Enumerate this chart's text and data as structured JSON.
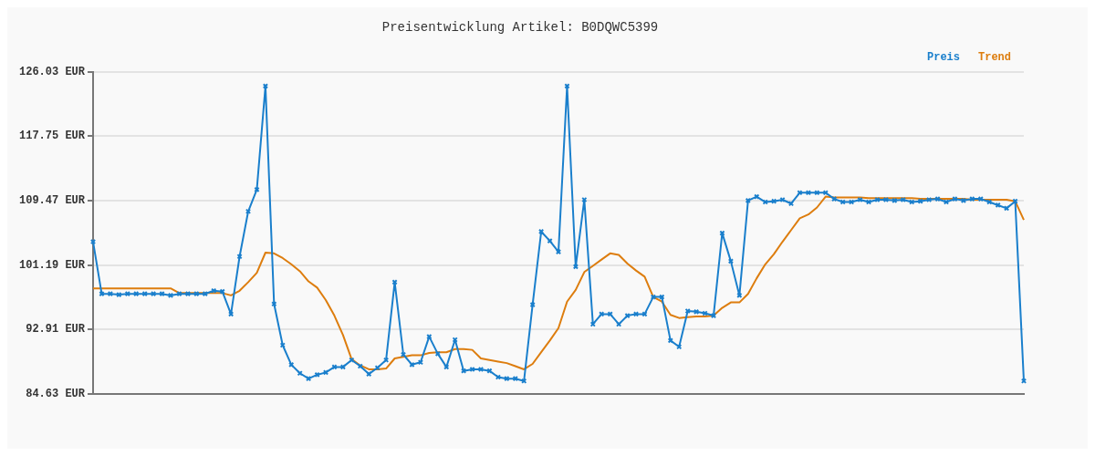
{
  "chart_data": {
    "type": "line",
    "title": "Preisentwicklung Artikel: B0DQWC5399",
    "categories": [
      null,
      null,
      null,
      null,
      null,
      null,
      null,
      null,
      null,
      null,
      null,
      null,
      null,
      null,
      null,
      null,
      null,
      null,
      null,
      null,
      null,
      null,
      null,
      null,
      null,
      null,
      null,
      null,
      null,
      null,
      null,
      null,
      null,
      null,
      null,
      null,
      null,
      null,
      null,
      null,
      null,
      null,
      null,
      null,
      null,
      null,
      null,
      null,
      null,
      null,
      null,
      null,
      null,
      null,
      null,
      null,
      null,
      null,
      null,
      null,
      null,
      null,
      null,
      null,
      null,
      null,
      null,
      null,
      null,
      null,
      null,
      null,
      null,
      null,
      null,
      null,
      null,
      null,
      null,
      null,
      null,
      null,
      null,
      null,
      null,
      null,
      null,
      null,
      null,
      null,
      null,
      null,
      null,
      null,
      null,
      null,
      null,
      null,
      null,
      null,
      null,
      null,
      null,
      null,
      null,
      null,
      null,
      null,
      null
    ],
    "series": [
      {
        "name": "Preis",
        "color": "#1a7fcc",
        "marker": "cross",
        "values": [
          104.2,
          97.5,
          97.5,
          97.4,
          97.5,
          97.5,
          97.5,
          97.5,
          97.5,
          97.3,
          97.5,
          97.5,
          97.5,
          97.5,
          97.9,
          97.8,
          94.9,
          102.3,
          108.1,
          110.9,
          124.2,
          96.2,
          90.9,
          88.4,
          87.3,
          86.6,
          87.1,
          87.4,
          88.1,
          88.1,
          89.0,
          88.2,
          87.2,
          88.0,
          89.0,
          99.0,
          89.7,
          88.4,
          88.7,
          92.0,
          89.8,
          88.1,
          91.6,
          87.6,
          87.8,
          87.8,
          87.6,
          86.8,
          86.6,
          86.6,
          86.3,
          96.1,
          105.5,
          104.3,
          102.9,
          124.2,
          101.0,
          109.6,
          93.6,
          94.9,
          94.9,
          93.6,
          94.7,
          94.9,
          94.9,
          97.1,
          97.1,
          91.5,
          90.7,
          95.3,
          95.2,
          95.0,
          94.7,
          105.3,
          101.7,
          97.3,
          109.5,
          110.0,
          109.3,
          109.4,
          109.6,
          109.1,
          110.5,
          110.5,
          110.5,
          110.5,
          109.7,
          109.3,
          109.3,
          109.6,
          109.3,
          109.6,
          109.6,
          109.5,
          109.6,
          109.3,
          109.4,
          109.6,
          109.7,
          109.3,
          109.7,
          109.5,
          109.7,
          109.7,
          109.3,
          108.9,
          108.5,
          109.4,
          86.3
        ]
      },
      {
        "name": "Trend",
        "color": "#dd7d0e",
        "marker": "none",
        "values": [
          98.2,
          98.2,
          98.2,
          98.2,
          98.2,
          98.2,
          98.2,
          98.2,
          98.2,
          98.2,
          97.6,
          97.6,
          97.6,
          97.6,
          97.6,
          97.6,
          97.3,
          97.9,
          99.0,
          100.2,
          102.8,
          102.7,
          102.1,
          101.3,
          100.4,
          99.1,
          98.3,
          96.7,
          94.7,
          92.2,
          89.1,
          88.3,
          87.8,
          87.8,
          87.9,
          89.2,
          89.4,
          89.6,
          89.6,
          89.9,
          90.0,
          90.0,
          90.4,
          90.4,
          90.3,
          89.2,
          89.0,
          88.8,
          88.6,
          88.2,
          87.8,
          88.5,
          90.0,
          91.5,
          93.1,
          96.5,
          98.0,
          100.3,
          101.1,
          101.9,
          102.7,
          102.5,
          101.4,
          100.5,
          99.7,
          97.1,
          96.5,
          94.8,
          94.4,
          94.5,
          94.6,
          94.6,
          94.7,
          95.7,
          96.4,
          96.4,
          97.5,
          99.5,
          101.3,
          102.6,
          104.2,
          105.7,
          107.2,
          107.7,
          108.6,
          110.0,
          109.9,
          109.9,
          109.9,
          109.9,
          109.8,
          109.8,
          109.8,
          109.8,
          109.8,
          109.8,
          109.7,
          109.7,
          109.7,
          109.7,
          109.7,
          109.7,
          109.6,
          109.6,
          109.6,
          109.6,
          109.6,
          109.4,
          107.0
        ]
      }
    ],
    "ylim": [
      84.63,
      126.03
    ],
    "yticks": [
      {
        "value": 84.63,
        "label": "84.63 EUR"
      },
      {
        "value": 92.91,
        "label": "92.91 EUR"
      },
      {
        "value": 101.19,
        "label": "101.19 EUR"
      },
      {
        "value": 109.47,
        "label": "109.47 EUR"
      },
      {
        "value": 117.75,
        "label": "117.75 EUR"
      },
      {
        "value": 126.03,
        "label": "126.03 EUR"
      }
    ],
    "grid": "y",
    "legend": "top right",
    "tick_labels": "y"
  }
}
